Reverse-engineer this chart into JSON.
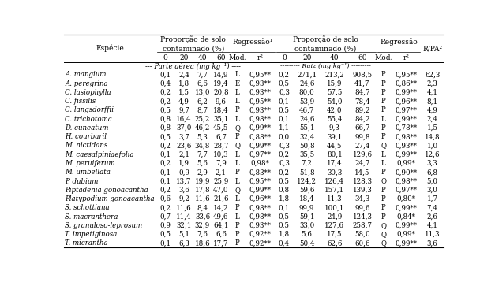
{
  "species": [
    "A. mangium",
    "A. peregrina",
    "C. lasiophylla",
    "C. fissilis",
    "C. langsdorffii",
    "C. trichotoma",
    "D. cuneatum",
    "H. courbaril",
    "M. nictidans",
    "M. caesalpiniaefolia",
    "M. peruiferum",
    "M. umbellata",
    "P. dubium",
    "Piptadenia gonoacantha",
    "Platypodium gonoacantha",
    "S. schottiana",
    "S. macranthera",
    "S. granuloso-leprosum",
    "T. impetiginosa",
    "T. micrantha"
  ],
  "pa_0": [
    0.1,
    0.4,
    0.2,
    0.2,
    0.5,
    0.8,
    0.8,
    0.5,
    0.2,
    0.1,
    0.2,
    0.1,
    0.1,
    0.2,
    0.6,
    0.2,
    0.7,
    0.9,
    0.5,
    0.1
  ],
  "pa_20": [
    2.4,
    1.8,
    1.5,
    4.9,
    9.7,
    16.4,
    37.0,
    3.7,
    23.6,
    2.1,
    1.9,
    0.9,
    13.7,
    3.6,
    9.2,
    11.6,
    11.4,
    32.1,
    5.1,
    6.3
  ],
  "pa_40": [
    7.7,
    6.6,
    13.0,
    6.2,
    8.7,
    25.2,
    46.2,
    5.3,
    34.8,
    7.7,
    5.6,
    2.9,
    19.9,
    17.8,
    11.6,
    8.4,
    33.6,
    32.9,
    7.6,
    18.6
  ],
  "pa_60": [
    14.9,
    19.4,
    20.8,
    9.6,
    18.4,
    35.1,
    45.5,
    6.7,
    28.7,
    10.3,
    7.9,
    2.1,
    25.9,
    47.0,
    21.6,
    14.2,
    49.6,
    64.1,
    6.6,
    17.7
  ],
  "pa_mod": [
    "L",
    "E",
    "L",
    "L",
    "P",
    "L",
    "Q",
    "P",
    "Q",
    "L",
    "L",
    "P",
    "L",
    "Q",
    "L",
    "P",
    "L",
    "P",
    "P",
    "P"
  ],
  "pa_r2": [
    "0,95**",
    "0,93**",
    "0,93**",
    "0,95**",
    "0,93**",
    "0,98**",
    "0,99**",
    "0,88**",
    "0,99**",
    "0,97**",
    "0,98*",
    "0,83**",
    "0,95**",
    "0,99**",
    "0,96**",
    "0,98**",
    "0,98**",
    "0,93**",
    "0,92**",
    "0,92**"
  ],
  "raiz_0": [
    0.2,
    0.5,
    0.3,
    0.1,
    0.5,
    0.1,
    1.1,
    0.0,
    0.3,
    0.2,
    0.3,
    0.2,
    0.5,
    0.8,
    1.8,
    0.1,
    0.5,
    0.5,
    1.8,
    0.4
  ],
  "raiz_20": [
    271.1,
    24.6,
    80.0,
    53.9,
    46.7,
    24.6,
    55.1,
    32.4,
    50.8,
    35.5,
    7.2,
    51.8,
    124.2,
    59.6,
    18.4,
    99.9,
    59.1,
    33.0,
    5.6,
    50.4
  ],
  "raiz_40": [
    213.2,
    15.9,
    57.5,
    54.0,
    42.0,
    55.4,
    9.3,
    39.1,
    44.5,
    80.1,
    17.4,
    30.3,
    126.4,
    157.1,
    11.3,
    100.1,
    24.9,
    127.6,
    17.5,
    62.6
  ],
  "raiz_60": [
    908.5,
    41.7,
    84.7,
    78.4,
    89.2,
    84.2,
    66.7,
    99.8,
    27.4,
    129.6,
    24.7,
    14.5,
    128.3,
    139.3,
    34.3,
    99.6,
    124.3,
    258.7,
    58.0,
    60.6
  ],
  "raiz_mod": [
    "P",
    "P",
    "P",
    "P",
    "P",
    "L",
    "P",
    "P",
    "Q",
    "L",
    "L",
    "P",
    "Q",
    "P",
    "P",
    "P",
    "P",
    "Q",
    "Q",
    "Q"
  ],
  "raiz_r2": [
    "0,95**",
    "0,86**",
    "0,99**",
    "0,96**",
    "0,97**",
    "0,99**",
    "0,78**",
    "0,98**",
    "0,93**",
    "0,99**",
    "0,99*",
    "0,90**",
    "0,98**",
    "0,97**",
    "0,80*",
    "0,99**",
    "0,84*",
    "0,99**",
    "0,99*",
    "0,99**"
  ],
  "rpa": [
    62.3,
    2.3,
    4.1,
    8.1,
    4.9,
    2.4,
    1.5,
    14.8,
    1.0,
    12.6,
    3.3,
    6.8,
    5.0,
    3.0,
    1.7,
    7.4,
    2.6,
    4.1,
    11.3,
    3.6
  ],
  "fs": 6.2,
  "fs_header": 6.5
}
